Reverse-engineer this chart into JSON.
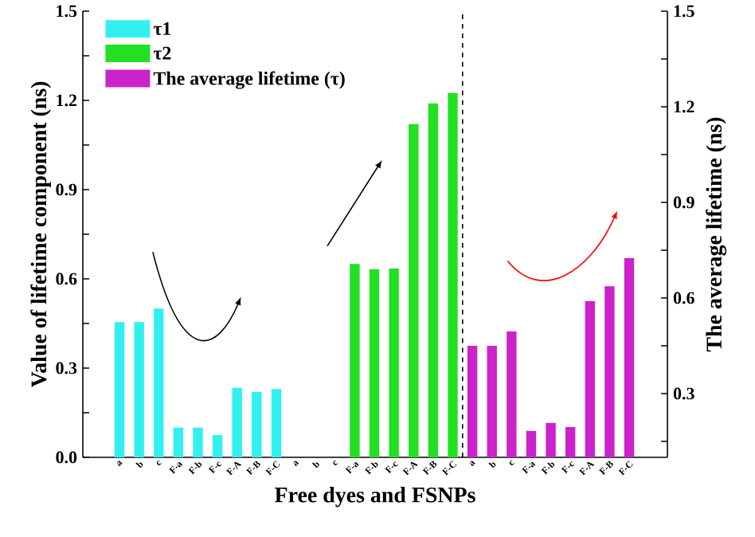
{
  "chart_data": {
    "type": "bar",
    "xlabel": "Free dyes and FSNPs",
    "ylabel": "Value of lifetime component (ns)",
    "y2label": "The average lifetime (ns)",
    "categories": [
      "a",
      "b",
      "c",
      "F-a",
      "F-b",
      "F-c",
      "F-A",
      "F-B",
      "F-C",
      "a",
      "b",
      "c",
      "F-a",
      "F-b",
      "F-c",
      "F-A",
      "F-B",
      "F-C",
      "a",
      "b",
      "c",
      "F-a",
      "F-b",
      "F-c",
      "F-A",
      "F-B",
      "F-C"
    ],
    "series": [
      {
        "name": "τ1",
        "color": "#33f0f0",
        "values": [
          0.455,
          0.455,
          0.5,
          0.1,
          0.1,
          0.075,
          0.234,
          0.22,
          0.23,
          null,
          null,
          null,
          null,
          null,
          null,
          null,
          null,
          null,
          null,
          null,
          null,
          null,
          null,
          null,
          null,
          null,
          null
        ]
      },
      {
        "name": "τ2",
        "color": "#22e022",
        "values": [
          null,
          null,
          null,
          null,
          null,
          null,
          null,
          null,
          null,
          null,
          null,
          null,
          0.65,
          0.632,
          0.635,
          1.12,
          1.19,
          1.225,
          null,
          null,
          null,
          null,
          null,
          null,
          null,
          null,
          null
        ]
      },
      {
        "name": "The average lifetime (τ)",
        "color": "#cc22cc",
        "axis": "y2",
        "values": [
          null,
          null,
          null,
          null,
          null,
          null,
          null,
          null,
          null,
          null,
          null,
          null,
          null,
          null,
          null,
          null,
          null,
          null,
          0.45,
          0.45,
          0.495,
          0.183,
          0.208,
          0.195,
          0.59,
          0.637,
          0.725
        ]
      }
    ],
    "ylim": [
      0,
      1.5
    ],
    "yticks": [
      {
        "value": 0,
        "label": "0.0"
      },
      {
        "value": 0.15,
        "label": null
      },
      0.3,
      {
        "value": 0.45,
        "label": null
      },
      0.6,
      {
        "value": 0.75,
        "label": null
      },
      0.9,
      {
        "value": 1.05,
        "label": null
      },
      1.2,
      {
        "value": 1.35,
        "label": null
      },
      1.5
    ],
    "y2lim": [
      0.1,
      1.5
    ],
    "y2ticks": [
      {
        "value": 0.15,
        "label": null
      },
      0.3,
      {
        "value": 0.45,
        "label": null
      },
      0.6,
      {
        "value": 0.75,
        "label": null
      },
      0.9,
      {
        "value": 1.05,
        "label": null
      },
      1.2,
      {
        "value": 1.35,
        "label": null
      },
      1.5
    ],
    "legend": "top left",
    "grid": false
  }
}
